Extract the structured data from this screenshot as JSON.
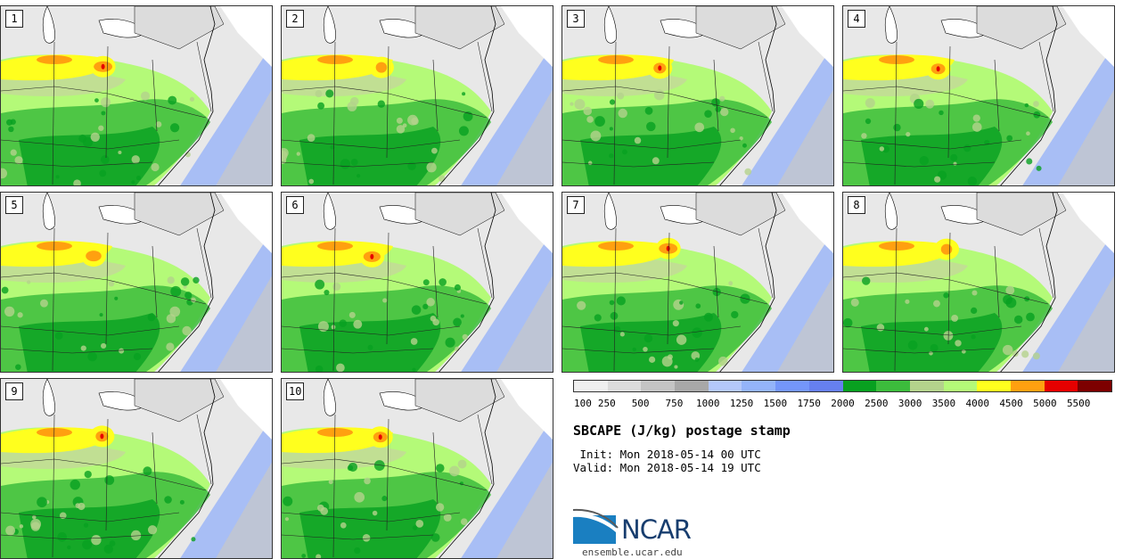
{
  "panels": [
    {
      "label": "1"
    },
    {
      "label": "2"
    },
    {
      "label": "3"
    },
    {
      "label": "4"
    },
    {
      "label": "5"
    },
    {
      "label": "6"
    },
    {
      "label": "7"
    },
    {
      "label": "8"
    },
    {
      "label": "9"
    },
    {
      "label": "10"
    }
  ],
  "colorbar": {
    "colors": [
      "#f0f0f0",
      "#dcdcdc",
      "#c4c4c4",
      "#a8a8a8",
      "#b4c8fa",
      "#94b4fa",
      "#7496fa",
      "#6680f0",
      "#08a020",
      "#3cbc3c",
      "#b4d28c",
      "#b4fa78",
      "#ffff1e",
      "#ffa010",
      "#e60000",
      "#7d0000"
    ],
    "ticks": [
      "100",
      "250",
      "500",
      "750",
      "1000",
      "1250",
      "1500",
      "1750",
      "2000",
      "2500",
      "3000",
      "3500",
      "4000",
      "4500",
      "5000",
      "5500"
    ]
  },
  "title": "SBCAPE (J/kg) postage stamp",
  "init": " Init: Mon 2018-05-14 00 UTC",
  "valid": "Valid: Mon 2018-05-14 19 UTC",
  "logo": {
    "text": "NCAR",
    "color": "#173d6e"
  },
  "site": "ensemble.ucar.edu"
}
